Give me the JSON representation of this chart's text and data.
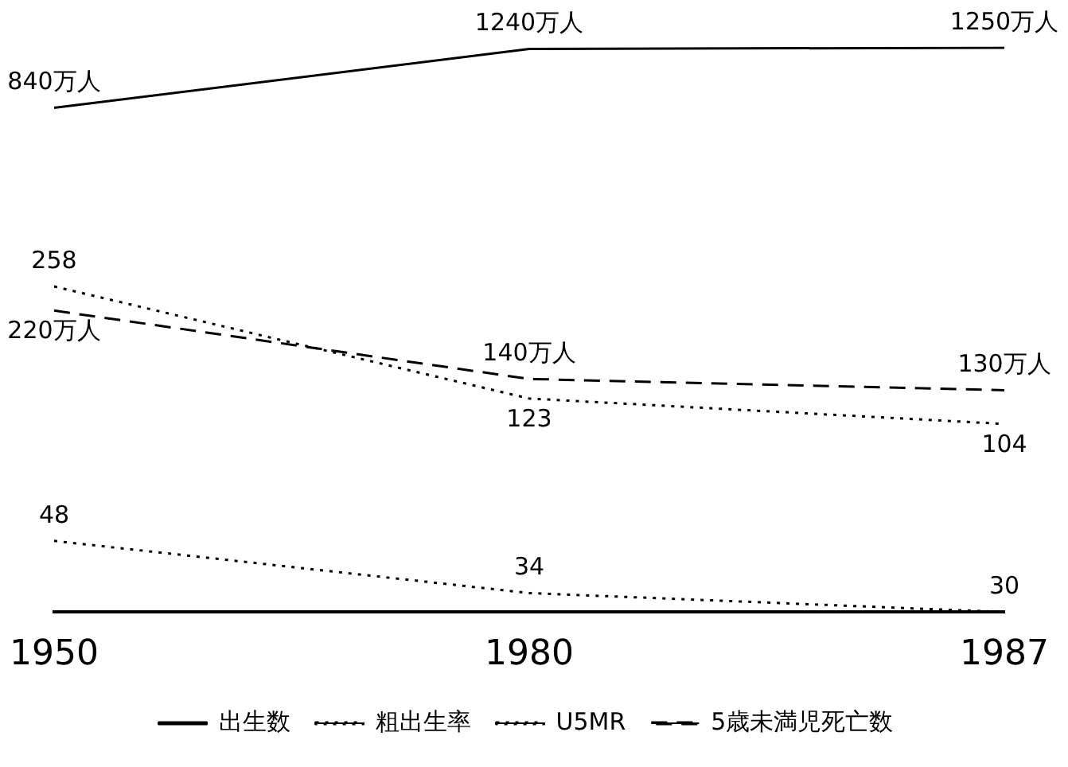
{
  "chart_data": {
    "type": "line",
    "categories": [
      "1950",
      "1980",
      "1987"
    ],
    "series": [
      {
        "name": "出生数",
        "color": "#000000",
        "values": [
          840,
          1240,
          1250
        ],
        "value_labels": [
          "840万人",
          "1240万人",
          "1250万人"
        ],
        "line_style": "solid"
      },
      {
        "name": "粗出生率",
        "color": "#000000",
        "values": [
          48,
          34,
          30
        ],
        "value_labels": [
          "48",
          "34",
          "30"
        ],
        "line_style": "dotted"
      },
      {
        "name": "U5MR",
        "color": "#000000",
        "values": [
          258,
          123,
          104
        ],
        "value_labels": [
          "258",
          "123",
          "104"
        ],
        "line_style": "dotted"
      },
      {
        "name": "5歳未満児死亡数",
        "color": "#000000",
        "values": [
          220,
          140,
          130
        ],
        "value_labels": [
          "220万人",
          "140万人",
          "130万人"
        ],
        "line_style": "dashed"
      }
    ],
    "marker": "none",
    "grid": false,
    "legend": "bottom",
    "log": true
  }
}
